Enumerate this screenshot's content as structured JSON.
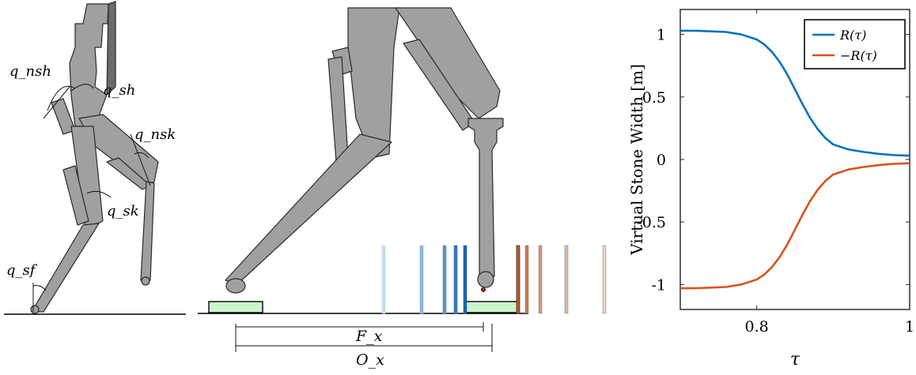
{
  "panel_left": {
    "labels": {
      "q_nsh": "q_nsh",
      "q_sh": "q_sh",
      "q_nsk": "q_nsk",
      "q_sk": "q_sk",
      "q_sf": "q_sf"
    }
  },
  "panel_middle": {
    "labels": {
      "F_x": "F_x",
      "O_x": "O_x"
    },
    "stone_color": "#ccf5cc",
    "marker_colors": {
      "blue": [
        "#c9dbe9",
        "#8fb6d6",
        "#5b93c3",
        "#3678b2",
        "#1f63a6"
      ],
      "orange": [
        "#c2552d",
        "#d07a55",
        "#d89a7c",
        "#e2b9a4",
        "#ecd3c6"
      ]
    }
  },
  "chart_data": {
    "type": "line",
    "ylabel": "Virtual Stone Width [m]",
    "xlabel": "τ",
    "xlim": [
      0.7,
      1.0
    ],
    "ylim": [
      -1.2,
      1.2
    ],
    "xticks": [
      "0.8",
      "1"
    ],
    "yticks": [
      "1",
      "0.5",
      "0",
      "-0.5",
      "-1"
    ],
    "legend_position": "top-right",
    "series": [
      {
        "name": "R(τ)",
        "color": "#0072BD",
        "x": [
          0.7,
          0.72,
          0.74,
          0.76,
          0.78,
          0.8,
          0.81,
          0.82,
          0.83,
          0.84,
          0.85,
          0.86,
          0.87,
          0.88,
          0.89,
          0.9,
          0.92,
          0.94,
          0.96,
          0.98,
          1.0
        ],
        "y": [
          1.03,
          1.03,
          1.025,
          1.02,
          1.0,
          0.96,
          0.92,
          0.86,
          0.78,
          0.68,
          0.56,
          0.44,
          0.33,
          0.24,
          0.17,
          0.12,
          0.08,
          0.06,
          0.045,
          0.035,
          0.03
        ]
      },
      {
        "name": "−R(τ)",
        "color": "#D95319",
        "x": [
          0.7,
          0.72,
          0.74,
          0.76,
          0.78,
          0.8,
          0.81,
          0.82,
          0.83,
          0.84,
          0.85,
          0.86,
          0.87,
          0.88,
          0.89,
          0.9,
          0.92,
          0.94,
          0.96,
          0.98,
          1.0
        ],
        "y": [
          -1.03,
          -1.03,
          -1.025,
          -1.02,
          -1.0,
          -0.96,
          -0.92,
          -0.86,
          -0.78,
          -0.68,
          -0.56,
          -0.44,
          -0.33,
          -0.24,
          -0.17,
          -0.12,
          -0.08,
          -0.06,
          -0.045,
          -0.035,
          -0.03
        ]
      }
    ]
  }
}
